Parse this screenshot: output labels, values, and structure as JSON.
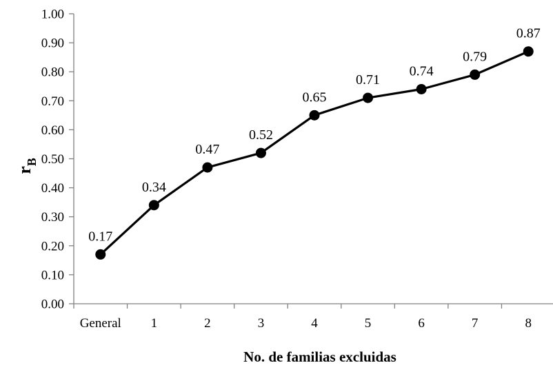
{
  "chart_data": {
    "type": "line",
    "categories": [
      "General",
      "1",
      "2",
      "3",
      "4",
      "5",
      "6",
      "7",
      "8"
    ],
    "values": [
      0.17,
      0.34,
      0.47,
      0.52,
      0.65,
      0.71,
      0.74,
      0.79,
      0.87
    ],
    "data_labels": [
      "0.17",
      "0.34",
      "0.47",
      "0.52",
      "0.65",
      "0.71",
      "0.74",
      "0.79",
      "0.87"
    ],
    "y_ticks": [
      "0.00",
      "0.10",
      "0.20",
      "0.30",
      "0.40",
      "0.50",
      "0.60",
      "0.70",
      "0.80",
      "0.90",
      "1.00"
    ],
    "ylim": [
      0,
      1
    ],
    "xlabel": "No. de familias excluidas",
    "ylabel": {
      "main": "r",
      "subscript": "B"
    },
    "grid": false,
    "legend": "none",
    "line_color": "#000000",
    "marker_color": "#000000"
  }
}
